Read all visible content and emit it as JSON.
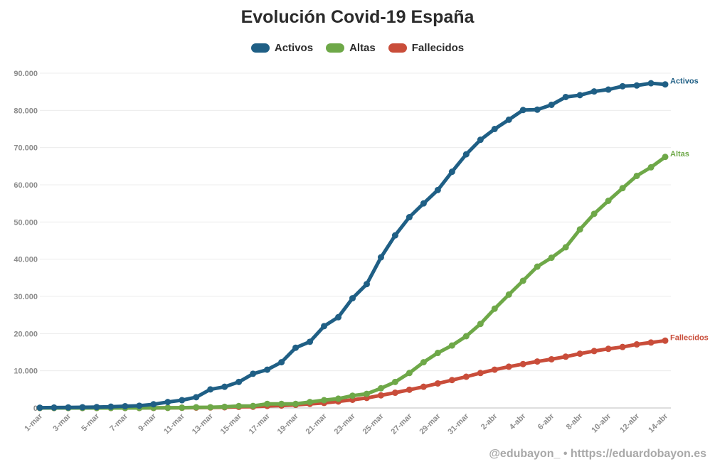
{
  "chart_data": {
    "type": "line",
    "title": "Evolución Covid-19 España",
    "xlabel": "",
    "ylabel": "",
    "ylim": [
      0,
      90000
    ],
    "yticks": [
      "0",
      "10.000",
      "20.000",
      "30.000",
      "40.000",
      "50.000",
      "60.000",
      "70.000",
      "80.000",
      "90.000"
    ],
    "ytick_values": [
      0,
      10000,
      20000,
      30000,
      40000,
      50000,
      60000,
      70000,
      80000,
      90000
    ],
    "grid": true,
    "legend": "top-center",
    "categories": [
      "1-mar",
      "2-mar",
      "3-mar",
      "4-mar",
      "5-mar",
      "6-mar",
      "7-mar",
      "8-mar",
      "9-mar",
      "10-mar",
      "11-mar",
      "12-mar",
      "13-mar",
      "14-mar",
      "15-mar",
      "16-mar",
      "17-mar",
      "18-mar",
      "19-mar",
      "20-mar",
      "21-mar",
      "22-mar",
      "23-mar",
      "24-mar",
      "25-mar",
      "26-mar",
      "27-mar",
      "28-mar",
      "29-mar",
      "30-mar",
      "31-mar",
      "1-abr",
      "2-abr",
      "3-abr",
      "4-abr",
      "5-abr",
      "6-abr",
      "7-abr",
      "8-abr",
      "9-abr",
      "10-abr",
      "11-abr",
      "12-abr",
      "13-abr",
      "14-abr"
    ],
    "xtick_labels": [
      "1-mar",
      "3-mar",
      "5-mar",
      "7-mar",
      "9-mar",
      "11-mar",
      "13-mar",
      "15-mar",
      "17-mar",
      "19-mar",
      "21-mar",
      "23-mar",
      "25-mar",
      "27-mar",
      "29-mar",
      "31-mar",
      "2-abr",
      "4-abr",
      "6-abr",
      "8-abr",
      "10-abr",
      "12-abr",
      "14-abr"
    ],
    "series": [
      {
        "name": "Activos",
        "color": "#1f5f85",
        "values": [
          80,
          110,
          150,
          200,
          250,
          350,
          480,
          600,
          1000,
          1600,
          2100,
          2900,
          5000,
          5700,
          7000,
          9200,
          10300,
          12300,
          16200,
          17800,
          22000,
          24400,
          29500,
          33300,
          40500,
          46400,
          51300,
          55000,
          58600,
          63500,
          68200,
          72100,
          75000,
          77500,
          80100,
          80200,
          81500,
          83600,
          84100,
          85100,
          85600,
          86500,
          86700,
          87300,
          87000
        ]
      },
      {
        "name": "Altas",
        "color": "#6ea848",
        "values": [
          0,
          0,
          0,
          0,
          0,
          0,
          0,
          0,
          30,
          40,
          80,
          180,
          200,
          300,
          520,
          550,
          1100,
          1100,
          1100,
          1600,
          2100,
          2500,
          3300,
          3800,
          5300,
          7000,
          9400,
          12300,
          14800,
          16800,
          19300,
          22600,
          26700,
          30500,
          34200,
          38000,
          40400,
          43200,
          48000,
          52200,
          55700,
          59100,
          62400,
          64700,
          67500
        ]
      },
      {
        "name": "Fallecidos",
        "color": "#c94d3a",
        "values": [
          0,
          0,
          0,
          0,
          0,
          0,
          0,
          10,
          20,
          40,
          60,
          100,
          140,
          200,
          300,
          340,
          550,
          650,
          850,
          1100,
          1350,
          1750,
          2200,
          2700,
          3400,
          4100,
          4900,
          5700,
          6600,
          7500,
          8400,
          9400,
          10300,
          11100,
          11800,
          12500,
          13100,
          13800,
          14600,
          15300,
          15900,
          16400,
          17100,
          17600,
          18100
        ]
      }
    ]
  },
  "footer": "@edubayon_ • htttps://eduardobayon.es"
}
